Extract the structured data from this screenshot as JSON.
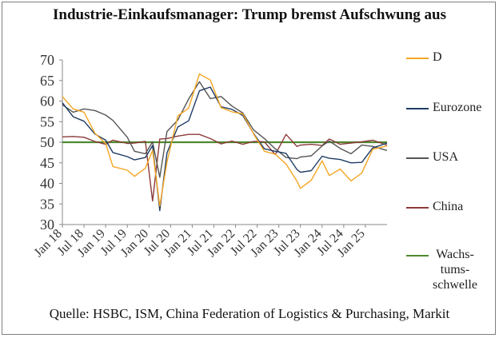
{
  "chart_data": {
    "type": "line",
    "title": "Industrie-Einkaufsmanager: Trump bremst Aufschwung aus",
    "source": "Quelle: HSBC, ISM, China Federation of Logistics & Purchasing, Markit",
    "xlabel": "",
    "ylabel": "",
    "ylim": [
      30,
      70
    ],
    "yticks": [
      30,
      35,
      40,
      45,
      50,
      55,
      60,
      65,
      70
    ],
    "x_range": [
      "2018-01",
      "2025-07"
    ],
    "x_tick_labels": [
      "Jan 18",
      "Jul 18",
      "Jan 19",
      "Jul 19",
      "Jan 20",
      "Jul 20",
      "Jan 21",
      "Jul 21",
      "Jan 22",
      "Jul 22",
      "Jan 23",
      "Jul 23",
      "Jan 24",
      "Jul 24",
      "Jan 25"
    ],
    "grid": false,
    "legend_position": "right",
    "colors": {
      "D": "#f5a623",
      "Eurozone": "#1f3b63",
      "USA": "#555555",
      "China": "#8b3a3a",
      "Wachstumsschwelle": "#4e8a2e"
    },
    "series": [
      {
        "name": "D",
        "values": [
          {
            "date": "2018-01",
            "value": 61.1
          },
          {
            "date": "2018-04",
            "value": 58.1
          },
          {
            "date": "2018-07",
            "value": 57.3
          },
          {
            "date": "2018-10",
            "value": 52.2
          },
          {
            "date": "2019-01",
            "value": 49.7
          },
          {
            "date": "2019-03",
            "value": 44.1
          },
          {
            "date": "2019-07",
            "value": 43.2
          },
          {
            "date": "2019-09",
            "value": 41.7
          },
          {
            "date": "2019-12",
            "value": 43.7
          },
          {
            "date": "2020-02",
            "value": 48.0
          },
          {
            "date": "2020-04",
            "value": 34.5
          },
          {
            "date": "2020-06",
            "value": 45.2
          },
          {
            "date": "2020-09",
            "value": 56.4
          },
          {
            "date": "2020-12",
            "value": 58.3
          },
          {
            "date": "2021-03",
            "value": 66.6
          },
          {
            "date": "2021-06",
            "value": 65.1
          },
          {
            "date": "2021-09",
            "value": 58.4
          },
          {
            "date": "2021-12",
            "value": 57.4
          },
          {
            "date": "2022-03",
            "value": 56.9
          },
          {
            "date": "2022-06",
            "value": 52.0
          },
          {
            "date": "2022-09",
            "value": 47.8
          },
          {
            "date": "2022-12",
            "value": 47.1
          },
          {
            "date": "2023-03",
            "value": 44.7
          },
          {
            "date": "2023-06",
            "value": 40.6
          },
          {
            "date": "2023-07",
            "value": 38.8
          },
          {
            "date": "2023-10",
            "value": 40.8
          },
          {
            "date": "2024-01",
            "value": 45.5
          },
          {
            "date": "2024-03",
            "value": 41.9
          },
          {
            "date": "2024-06",
            "value": 43.5
          },
          {
            "date": "2024-09",
            "value": 40.6
          },
          {
            "date": "2024-12",
            "value": 42.5
          },
          {
            "date": "2025-03",
            "value": 48.3
          },
          {
            "date": "2025-07",
            "value": 49.1
          }
        ]
      },
      {
        "name": "Eurozone",
        "values": [
          {
            "date": "2018-01",
            "value": 59.6
          },
          {
            "date": "2018-04",
            "value": 56.2
          },
          {
            "date": "2018-07",
            "value": 55.1
          },
          {
            "date": "2018-10",
            "value": 52.0
          },
          {
            "date": "2019-01",
            "value": 50.5
          },
          {
            "date": "2019-03",
            "value": 47.5
          },
          {
            "date": "2019-07",
            "value": 46.5
          },
          {
            "date": "2019-09",
            "value": 45.7
          },
          {
            "date": "2019-12",
            "value": 46.3
          },
          {
            "date": "2020-02",
            "value": 49.2
          },
          {
            "date": "2020-04",
            "value": 33.4
          },
          {
            "date": "2020-06",
            "value": 47.4
          },
          {
            "date": "2020-09",
            "value": 53.7
          },
          {
            "date": "2020-12",
            "value": 55.2
          },
          {
            "date": "2021-03",
            "value": 62.5
          },
          {
            "date": "2021-06",
            "value": 63.4
          },
          {
            "date": "2021-09",
            "value": 58.6
          },
          {
            "date": "2021-12",
            "value": 58.0
          },
          {
            "date": "2022-03",
            "value": 56.5
          },
          {
            "date": "2022-06",
            "value": 52.1
          },
          {
            "date": "2022-09",
            "value": 48.4
          },
          {
            "date": "2022-12",
            "value": 47.8
          },
          {
            "date": "2023-03",
            "value": 47.3
          },
          {
            "date": "2023-06",
            "value": 43.4
          },
          {
            "date": "2023-07",
            "value": 42.7
          },
          {
            "date": "2023-10",
            "value": 43.1
          },
          {
            "date": "2024-01",
            "value": 46.6
          },
          {
            "date": "2024-03",
            "value": 46.1
          },
          {
            "date": "2024-06",
            "value": 45.8
          },
          {
            "date": "2024-09",
            "value": 45.0
          },
          {
            "date": "2024-12",
            "value": 45.1
          },
          {
            "date": "2025-03",
            "value": 48.6
          },
          {
            "date": "2025-07",
            "value": 49.8
          }
        ]
      },
      {
        "name": "USA",
        "values": [
          {
            "date": "2018-01",
            "value": 59.1
          },
          {
            "date": "2018-04",
            "value": 57.3
          },
          {
            "date": "2018-07",
            "value": 58.1
          },
          {
            "date": "2018-10",
            "value": 57.7
          },
          {
            "date": "2019-01",
            "value": 56.6
          },
          {
            "date": "2019-03",
            "value": 55.3
          },
          {
            "date": "2019-07",
            "value": 51.2
          },
          {
            "date": "2019-09",
            "value": 47.8
          },
          {
            "date": "2019-12",
            "value": 47.2
          },
          {
            "date": "2020-02",
            "value": 50.1
          },
          {
            "date": "2020-04",
            "value": 41.5
          },
          {
            "date": "2020-06",
            "value": 52.6
          },
          {
            "date": "2020-09",
            "value": 55.4
          },
          {
            "date": "2020-12",
            "value": 60.5
          },
          {
            "date": "2021-03",
            "value": 64.7
          },
          {
            "date": "2021-06",
            "value": 60.6
          },
          {
            "date": "2021-09",
            "value": 61.1
          },
          {
            "date": "2021-12",
            "value": 58.8
          },
          {
            "date": "2022-03",
            "value": 57.1
          },
          {
            "date": "2022-06",
            "value": 53.0
          },
          {
            "date": "2022-09",
            "value": 50.9
          },
          {
            "date": "2022-12",
            "value": 48.4
          },
          {
            "date": "2023-03",
            "value": 46.3
          },
          {
            "date": "2023-06",
            "value": 46.0
          },
          {
            "date": "2023-07",
            "value": 46.4
          },
          {
            "date": "2023-10",
            "value": 46.7
          },
          {
            "date": "2024-01",
            "value": 49.1
          },
          {
            "date": "2024-03",
            "value": 50.3
          },
          {
            "date": "2024-06",
            "value": 48.5
          },
          {
            "date": "2024-09",
            "value": 47.2
          },
          {
            "date": "2024-12",
            "value": 49.3
          },
          {
            "date": "2025-03",
            "value": 49.0
          },
          {
            "date": "2025-07",
            "value": 48.0
          }
        ]
      },
      {
        "name": "China",
        "values": [
          {
            "date": "2018-01",
            "value": 51.3
          },
          {
            "date": "2018-04",
            "value": 51.4
          },
          {
            "date": "2018-07",
            "value": 51.2
          },
          {
            "date": "2018-10",
            "value": 50.2
          },
          {
            "date": "2019-01",
            "value": 49.5
          },
          {
            "date": "2019-03",
            "value": 50.5
          },
          {
            "date": "2019-07",
            "value": 49.7
          },
          {
            "date": "2019-09",
            "value": 49.8
          },
          {
            "date": "2019-12",
            "value": 50.2
          },
          {
            "date": "2020-02",
            "value": 35.7
          },
          {
            "date": "2020-04",
            "value": 50.8
          },
          {
            "date": "2020-06",
            "value": 50.9
          },
          {
            "date": "2020-09",
            "value": 51.5
          },
          {
            "date": "2020-12",
            "value": 51.9
          },
          {
            "date": "2021-03",
            "value": 51.9
          },
          {
            "date": "2021-06",
            "value": 50.9
          },
          {
            "date": "2021-09",
            "value": 49.6
          },
          {
            "date": "2021-12",
            "value": 50.3
          },
          {
            "date": "2022-03",
            "value": 49.5
          },
          {
            "date": "2022-06",
            "value": 50.2
          },
          {
            "date": "2022-09",
            "value": 50.1
          },
          {
            "date": "2022-12",
            "value": 47.0
          },
          {
            "date": "2023-03",
            "value": 51.9
          },
          {
            "date": "2023-06",
            "value": 49.0
          },
          {
            "date": "2023-07",
            "value": 49.3
          },
          {
            "date": "2023-10",
            "value": 49.5
          },
          {
            "date": "2024-01",
            "value": 49.2
          },
          {
            "date": "2024-03",
            "value": 50.8
          },
          {
            "date": "2024-06",
            "value": 49.5
          },
          {
            "date": "2024-09",
            "value": 49.8
          },
          {
            "date": "2024-12",
            "value": 50.1
          },
          {
            "date": "2025-03",
            "value": 50.5
          },
          {
            "date": "2025-07",
            "value": 49.3
          }
        ]
      },
      {
        "name": "Wachstumsschwelle",
        "values": [
          {
            "date": "2018-01",
            "value": 50
          },
          {
            "date": "2025-07",
            "value": 50
          }
        ]
      }
    ],
    "legend": [
      {
        "series": "D",
        "label": "D"
      },
      {
        "series": "Eurozone",
        "label": "Eurozone"
      },
      {
        "series": "USA",
        "label": "USA"
      },
      {
        "series": "China",
        "label": "China"
      },
      {
        "series": "Wachstumsschwelle",
        "label_lines": [
          "Wachs-",
          "tums-",
          "schwelle"
        ]
      }
    ]
  }
}
